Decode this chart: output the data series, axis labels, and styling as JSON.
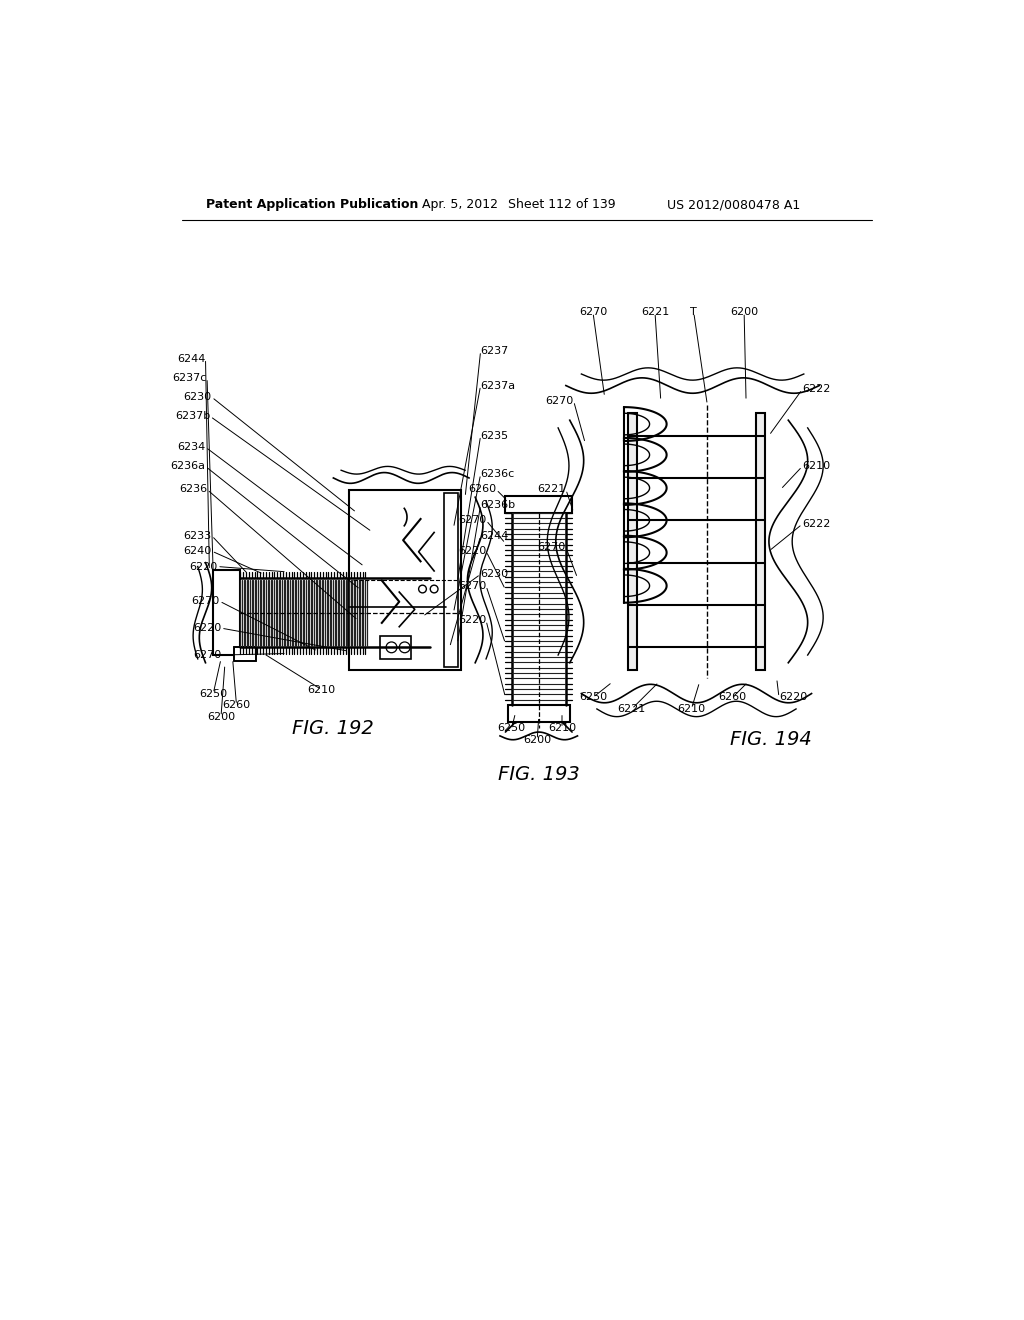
{
  "background_color": "#ffffff",
  "header_text": "Patent Application Publication",
  "header_date": "Apr. 5, 2012",
  "header_sheet": "Sheet 112 of 139",
  "header_patent": "US 2012/0080478 A1",
  "fig192_label": "FIG. 192",
  "fig193_label": "FIG. 193",
  "fig194_label": "FIG. 194",
  "line_color": "#000000",
  "font_size_header": 9,
  "font_size_label": 8,
  "font_size_fig": 14
}
